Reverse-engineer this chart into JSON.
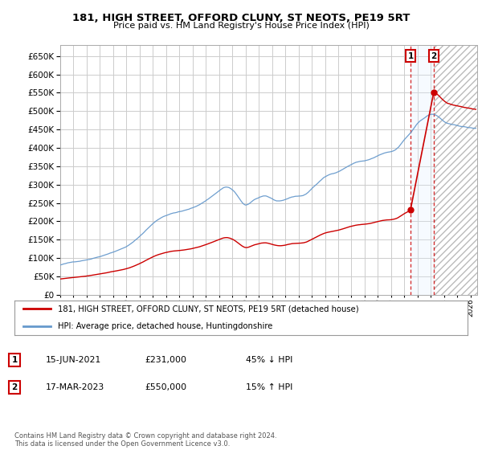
{
  "title": "181, HIGH STREET, OFFORD CLUNY, ST NEOTS, PE19 5RT",
  "subtitle": "Price paid vs. HM Land Registry's House Price Index (HPI)",
  "red_label": "181, HIGH STREET, OFFORD CLUNY, ST NEOTS, PE19 5RT (detached house)",
  "blue_label": "HPI: Average price, detached house, Huntingdonshire",
  "annotation1_num": "1",
  "annotation1_date": "15-JUN-2021",
  "annotation1_price": "£231,000",
  "annotation1_hpi": "45% ↓ HPI",
  "annotation2_num": "2",
  "annotation2_date": "17-MAR-2023",
  "annotation2_price": "£550,000",
  "annotation2_hpi": "15% ↑ HPI",
  "footer": "Contains HM Land Registry data © Crown copyright and database right 2024.\nThis data is licensed under the Open Government Licence v3.0.",
  "ylim": [
    0,
    680000
  ],
  "yticks": [
    0,
    50000,
    100000,
    150000,
    200000,
    250000,
    300000,
    350000,
    400000,
    450000,
    500000,
    550000,
    600000,
    650000
  ],
  "red_color": "#cc0000",
  "blue_color": "#6699cc",
  "blue_fill_color": "#ddeeff",
  "sale1_year": 2021.46,
  "sale1_value": 231000,
  "sale2_year": 2023.21,
  "sale2_value": 550000,
  "background_color": "#ffffff",
  "grid_color": "#cccccc",
  "hatch_color": "#bbbbbb"
}
